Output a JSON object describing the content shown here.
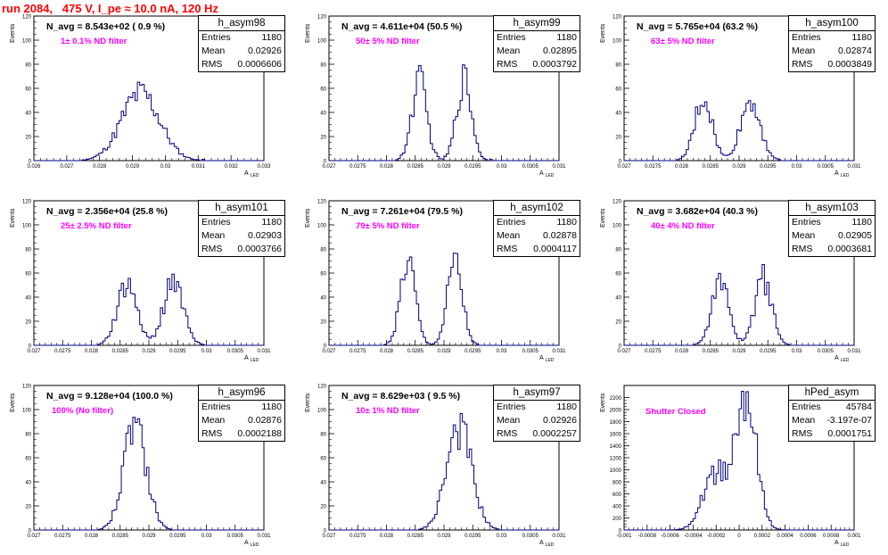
{
  "page": {
    "title": "run 2084,   475 V, I_pe ≈ 10.0 nA, 120 Hz"
  },
  "stat_labels": {
    "entries": "Entries",
    "mean": "Mean",
    "rms": "RMS"
  },
  "axis_labels": {
    "y": "Events",
    "x": "A",
    "x_sub": "LED"
  },
  "colors": {
    "histogram": "#000080",
    "filter_text": "#ff00ff",
    "title": "#ff0000"
  },
  "chart_data": [
    {
      "type": "histogram",
      "name": "h_asym98",
      "n_avg_text": "N_avg = 8.543e+02 ( 0.9 %)",
      "filter_text": "1± 0.1% ND filter",
      "stats": {
        "entries": "1180",
        "mean": "0.02926",
        "rms": "0.0006606"
      },
      "xlim": [
        0.026,
        0.033
      ],
      "ylim": [
        0,
        120
      ],
      "x_ticks": [
        "0.026",
        "0.027",
        "0.028",
        "0.029",
        "0.03",
        "0.031",
        "0.032",
        "0.033"
      ],
      "y_ticks": [
        "0",
        "20",
        "40",
        "60",
        "80",
        "100",
        "120"
      ],
      "x_label": "A",
      "y_label": "Events",
      "peaks": [
        {
          "center": 0.02925,
          "sigma": 0.00058,
          "height": 56
        }
      ]
    },
    {
      "type": "histogram",
      "name": "h_asym99",
      "n_avg_text": "N_avg = 4.611e+04 (50.5 %)",
      "filter_text": "50± 5% ND filter",
      "stats": {
        "entries": "1180",
        "mean": "0.02895",
        "rms": "0.0003792"
      },
      "xlim": [
        0.027,
        0.031
      ],
      "ylim": [
        0,
        120
      ],
      "x_ticks": [
        "0.027",
        "0.0275",
        "0.028",
        "0.0285",
        "0.029",
        "0.0295",
        "0.03",
        "0.0305",
        "0.031"
      ],
      "y_ticks": [
        "0",
        "20",
        "40",
        "60",
        "80",
        "100",
        "120"
      ],
      "x_label": "A",
      "y_label": "Events",
      "peaks": [
        {
          "center": 0.02857,
          "sigma": 0.00013,
          "height": 66
        },
        {
          "center": 0.02935,
          "sigma": 0.00013,
          "height": 68
        }
      ]
    },
    {
      "type": "histogram",
      "name": "h_asym100",
      "n_avg_text": "N_avg = 5.765e+04 (63.2 %)",
      "filter_text": "63± 5% ND filter",
      "stats": {
        "entries": "1180",
        "mean": "0.02874",
        "rms": "0.0003849"
      },
      "xlim": [
        0.027,
        0.031
      ],
      "ylim": [
        0,
        120
      ],
      "x_ticks": [
        "0.027",
        "0.0275",
        "0.028",
        "0.0285",
        "0.029",
        "0.0295",
        "0.03",
        "0.0305",
        "0.031"
      ],
      "y_ticks": [
        "0",
        "20",
        "40",
        "60",
        "80",
        "100",
        "120"
      ],
      "x_label": "A",
      "y_label": "Events",
      "peaks": [
        {
          "center": 0.02838,
          "sigma": 0.00015,
          "height": 52
        },
        {
          "center": 0.0292,
          "sigma": 0.00017,
          "height": 50
        }
      ]
    },
    {
      "type": "histogram",
      "name": "h_asym101",
      "n_avg_text": "N_avg = 2.356e+04 (25.8 %)",
      "filter_text": "25± 2.5% ND filter",
      "stats": {
        "entries": "1180",
        "mean": "0.02903",
        "rms": "0.0003766"
      },
      "xlim": [
        0.027,
        0.031
      ],
      "ylim": [
        0,
        120
      ],
      "x_ticks": [
        "0.027",
        "0.0275",
        "0.028",
        "0.0285",
        "0.029",
        "0.0295",
        "0.03",
        "0.0305",
        "0.031"
      ],
      "y_ticks": [
        "0",
        "20",
        "40",
        "60",
        "80",
        "100",
        "120"
      ],
      "x_label": "A",
      "y_label": "Events",
      "peaks": [
        {
          "center": 0.02862,
          "sigma": 0.00017,
          "height": 50
        },
        {
          "center": 0.02943,
          "sigma": 0.00017,
          "height": 55
        }
      ]
    },
    {
      "type": "histogram",
      "name": "h_asym102",
      "n_avg_text": "N_avg = 7.261e+04 (79.5 %)",
      "filter_text": "79± 5% ND filter",
      "stats": {
        "entries": "1180",
        "mean": "0.02878",
        "rms": "0.0004117"
      },
      "xlim": [
        0.027,
        0.031
      ],
      "ylim": [
        0,
        120
      ],
      "x_ticks": [
        "0.027",
        "0.0275",
        "0.028",
        "0.0285",
        "0.029",
        "0.0295",
        "0.03",
        "0.0305",
        "0.031"
      ],
      "y_ticks": [
        "0",
        "20",
        "40",
        "60",
        "80",
        "100",
        "120"
      ],
      "x_label": "A",
      "y_label": "Events",
      "peaks": [
        {
          "center": 0.02837,
          "sigma": 0.00013,
          "height": 70
        },
        {
          "center": 0.02919,
          "sigma": 0.00013,
          "height": 68
        }
      ]
    },
    {
      "type": "histogram",
      "name": "h_asym103",
      "n_avg_text": "N_avg = 3.682e+04 (40.3 %)",
      "filter_text": "40± 4% ND filter",
      "stats": {
        "entries": "1180",
        "mean": "0.02905",
        "rms": "0.0003681"
      },
      "xlim": [
        0.027,
        0.031
      ],
      "ylim": [
        0,
        120
      ],
      "x_ticks": [
        "0.027",
        "0.0275",
        "0.028",
        "0.0285",
        "0.029",
        "0.0295",
        "0.03",
        "0.0305",
        "0.031"
      ],
      "y_ticks": [
        "0",
        "20",
        "40",
        "60",
        "80",
        "100",
        "120"
      ],
      "x_label": "A",
      "y_label": "Events",
      "peaks": [
        {
          "center": 0.02867,
          "sigma": 0.00015,
          "height": 52
        },
        {
          "center": 0.02942,
          "sigma": 0.00015,
          "height": 55
        }
      ]
    },
    {
      "type": "histogram",
      "name": "h_asym96",
      "n_avg_text": "N_avg = 9.128e+04 (100.0 %)",
      "filter_text": "100% (No filter)",
      "stats": {
        "entries": "1180",
        "mean": "0.02876",
        "rms": "0.0002188"
      },
      "xlim": [
        0.027,
        0.031
      ],
      "ylim": [
        0,
        120
      ],
      "x_ticks": [
        "0.027",
        "0.0275",
        "0.028",
        "0.0285",
        "0.029",
        "0.0295",
        "0.03",
        "0.0305",
        "0.031"
      ],
      "y_ticks": [
        "0",
        "20",
        "40",
        "60",
        "80",
        "100",
        "120"
      ],
      "x_label": "A",
      "y_label": "Events",
      "peaks": [
        {
          "center": 0.02876,
          "sigma": 0.0002,
          "height": 85
        }
      ]
    },
    {
      "type": "histogram",
      "name": "h_asym97",
      "n_avg_text": "N_avg = 8.629e+03 ( 9.5 %)",
      "filter_text": "10± 1% ND filter",
      "stats": {
        "entries": "1180",
        "mean": "0.02926",
        "rms": "0.0002257"
      },
      "xlim": [
        0.027,
        0.031
      ],
      "ylim": [
        0,
        120
      ],
      "x_ticks": [
        "0.027",
        "0.0275",
        "0.028",
        "0.0285",
        "0.029",
        "0.0295",
        "0.03",
        "0.0305",
        "0.031"
      ],
      "y_ticks": [
        "0",
        "20",
        "40",
        "60",
        "80",
        "100",
        "120"
      ],
      "x_label": "A",
      "y_label": "Events",
      "peaks": [
        {
          "center": 0.02926,
          "sigma": 0.00022,
          "height": 85
        }
      ]
    },
    {
      "type": "histogram",
      "name": "hPed_asym",
      "n_avg_text": "",
      "filter_text": "Shutter Closed",
      "stats": {
        "entries": "45784",
        "mean": "-3.197e-07",
        "rms": "0.0001751"
      },
      "xlim": [
        -0.001,
        0.001
      ],
      "ylim": [
        0,
        2400
      ],
      "x_ticks": [
        "-0.001",
        "-0.0008",
        "-0.0006",
        "-0.0004",
        "-0.0002",
        "0",
        "0.0002",
        "0.0004",
        "0.0006",
        "0.0008",
        "0.001"
      ],
      "y_ticks": [
        "0",
        "200",
        "400",
        "600",
        "800",
        "1000",
        "1200",
        "1400",
        "1600",
        "1800",
        "2000",
        "2200"
      ],
      "x_label": "A",
      "y_label": "Events",
      "peaks": [
        {
          "center": 6e-05,
          "sigma": 9e-05,
          "height": 2150
        },
        {
          "center": -0.0002,
          "sigma": 0.00011,
          "height": 950
        }
      ]
    }
  ]
}
